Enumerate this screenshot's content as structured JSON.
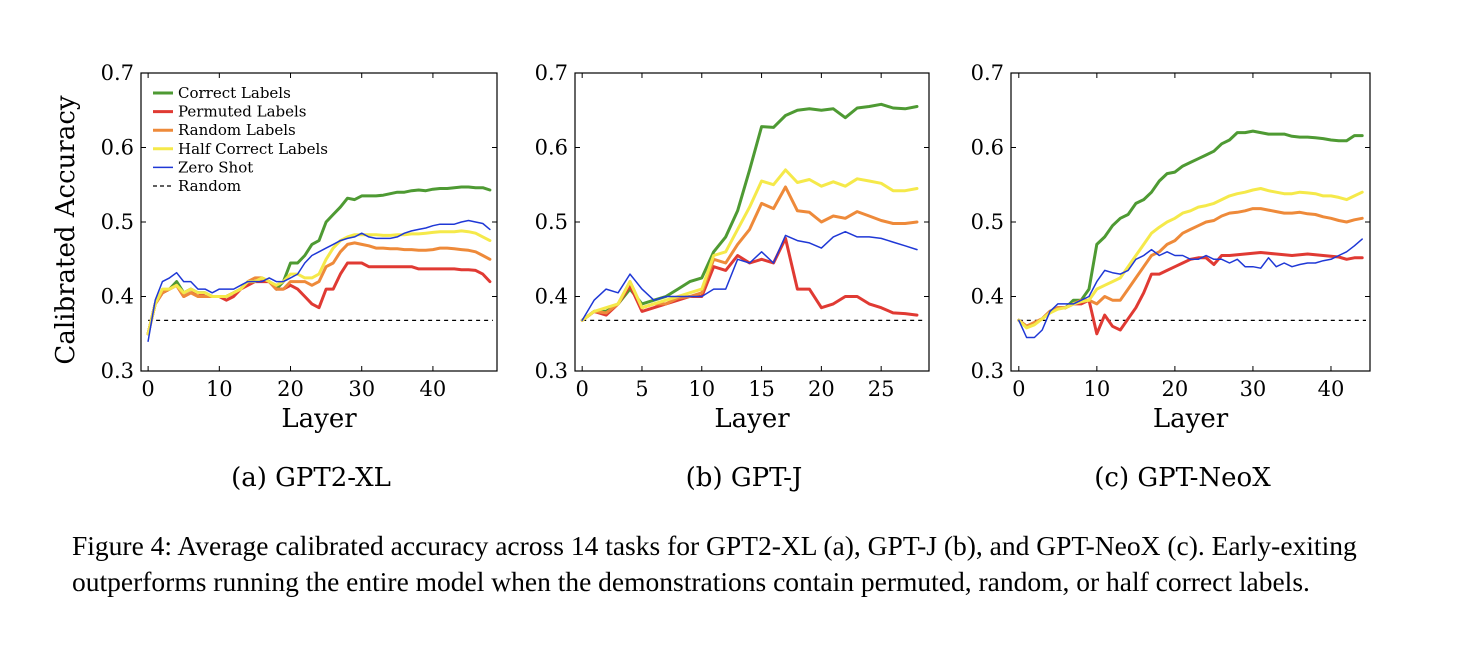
{
  "caption": "Figure 4: Average calibrated accuracy across 14 tasks for GPT2-XL (a), GPT-J (b), and GPT-NeoX (c). Early-exiting outperforms running the entire model when the demonstrations contain permuted, random, or half correct labels.",
  "legend": [
    {
      "label": "Correct Labels",
      "color": "#4e9a33",
      "style": "solid"
    },
    {
      "label": "Permuted Labels",
      "color": "#e03a33",
      "style": "solid"
    },
    {
      "label": "Random Labels",
      "color": "#ee8a3a",
      "style": "solid"
    },
    {
      "label": "Half Correct Labels",
      "color": "#f5e94a",
      "style": "solid"
    },
    {
      "label": "Zero Shot",
      "color": "#1f38d6",
      "style": "thin"
    },
    {
      "label": "Random",
      "color": "#000000",
      "style": "dashed"
    }
  ],
  "chart_data": [
    {
      "type": "line",
      "subcaption": "(a) GPT2-XL",
      "xlabel": "Layer",
      "ylabel": "Calibrated Accuracy",
      "xlim": [
        -1,
        49
      ],
      "ylim": [
        0.3,
        0.7
      ],
      "xticks": [
        0,
        10,
        20,
        30,
        40
      ],
      "yticks": [
        "0.3",
        "0.4",
        "0.5",
        "0.6",
        "0.7"
      ],
      "random_baseline": 0.368,
      "series": [
        {
          "name": "Correct Labels",
          "values": [
            0.35,
            0.39,
            0.405,
            0.41,
            0.42,
            0.405,
            0.41,
            0.405,
            0.405,
            0.4,
            0.4,
            0.4,
            0.405,
            0.41,
            0.42,
            0.42,
            0.425,
            0.42,
            0.41,
            0.42,
            0.445,
            0.445,
            0.455,
            0.47,
            0.475,
            0.5,
            0.51,
            0.52,
            0.532,
            0.53,
            0.535,
            0.535,
            0.535,
            0.536,
            0.538,
            0.54,
            0.54,
            0.542,
            0.543,
            0.542,
            0.544,
            0.545,
            0.545,
            0.546,
            0.547,
            0.547,
            0.546,
            0.546,
            0.543
          ]
        },
        {
          "name": "Permuted Labels",
          "values": [
            0.35,
            0.39,
            0.405,
            0.41,
            0.415,
            0.4,
            0.405,
            0.405,
            0.4,
            0.4,
            0.4,
            0.395,
            0.4,
            0.41,
            0.415,
            0.42,
            0.42,
            0.42,
            0.41,
            0.41,
            0.415,
            0.41,
            0.4,
            0.39,
            0.385,
            0.41,
            0.41,
            0.43,
            0.445,
            0.445,
            0.445,
            0.44,
            0.44,
            0.44,
            0.44,
            0.44,
            0.44,
            0.44,
            0.437,
            0.437,
            0.437,
            0.437,
            0.437,
            0.437,
            0.436,
            0.436,
            0.435,
            0.43,
            0.42
          ]
        },
        {
          "name": "Random Labels",
          "values": [
            0.35,
            0.39,
            0.405,
            0.41,
            0.415,
            0.4,
            0.405,
            0.4,
            0.4,
            0.4,
            0.4,
            0.4,
            0.405,
            0.41,
            0.42,
            0.425,
            0.425,
            0.42,
            0.41,
            0.41,
            0.42,
            0.42,
            0.42,
            0.415,
            0.42,
            0.44,
            0.445,
            0.46,
            0.47,
            0.472,
            0.47,
            0.468,
            0.465,
            0.465,
            0.464,
            0.464,
            0.463,
            0.463,
            0.462,
            0.462,
            0.463,
            0.465,
            0.465,
            0.464,
            0.463,
            0.462,
            0.46,
            0.455,
            0.45
          ]
        },
        {
          "name": "Half Correct Labels",
          "values": [
            0.35,
            0.39,
            0.41,
            0.41,
            0.415,
            0.405,
            0.41,
            0.405,
            0.405,
            0.4,
            0.4,
            0.4,
            0.405,
            0.41,
            0.42,
            0.42,
            0.425,
            0.42,
            0.415,
            0.42,
            0.43,
            0.43,
            0.425,
            0.425,
            0.43,
            0.45,
            0.465,
            0.475,
            0.48,
            0.483,
            0.483,
            0.483,
            0.483,
            0.482,
            0.482,
            0.483,
            0.483,
            0.484,
            0.484,
            0.485,
            0.486,
            0.487,
            0.487,
            0.487,
            0.488,
            0.487,
            0.485,
            0.48,
            0.475
          ]
        },
        {
          "name": "Zero Shot",
          "values": [
            0.34,
            0.395,
            0.42,
            0.425,
            0.432,
            0.42,
            0.42,
            0.41,
            0.41,
            0.405,
            0.41,
            0.41,
            0.41,
            0.415,
            0.42,
            0.42,
            0.42,
            0.425,
            0.42,
            0.42,
            0.425,
            0.43,
            0.445,
            0.455,
            0.46,
            0.465,
            0.47,
            0.475,
            0.478,
            0.48,
            0.485,
            0.48,
            0.478,
            0.478,
            0.478,
            0.48,
            0.485,
            0.488,
            0.49,
            0.492,
            0.495,
            0.497,
            0.497,
            0.497,
            0.5,
            0.502,
            0.5,
            0.498,
            0.49
          ]
        }
      ]
    },
    {
      "type": "line",
      "subcaption": "(b) GPT-J",
      "xlabel": "Layer",
      "ylabel": "",
      "xlim": [
        -0.6,
        29
      ],
      "ylim": [
        0.3,
        0.7
      ],
      "xticks": [
        0,
        5,
        10,
        15,
        20,
        25
      ],
      "yticks": [
        "0.3",
        "0.4",
        "0.5",
        "0.6",
        "0.7"
      ],
      "random_baseline": 0.368,
      "series": [
        {
          "name": "Correct Labels",
          "values": [
            0.368,
            0.38,
            0.38,
            0.39,
            0.41,
            0.39,
            0.395,
            0.4,
            0.41,
            0.42,
            0.425,
            0.46,
            0.48,
            0.515,
            0.57,
            0.628,
            0.627,
            0.643,
            0.65,
            0.652,
            0.65,
            0.652,
            0.64,
            0.653,
            0.655,
            0.658,
            0.653,
            0.652,
            0.655
          ]
        },
        {
          "name": "Permuted Labels",
          "values": [
            0.368,
            0.38,
            0.375,
            0.39,
            0.415,
            0.38,
            0.385,
            0.39,
            0.395,
            0.4,
            0.4,
            0.44,
            0.435,
            0.455,
            0.445,
            0.45,
            0.445,
            0.478,
            0.41,
            0.41,
            0.385,
            0.39,
            0.4,
            0.4,
            0.39,
            0.385,
            0.378,
            0.377,
            0.375
          ]
        },
        {
          "name": "Random Labels",
          "values": [
            0.368,
            0.38,
            0.378,
            0.39,
            0.42,
            0.385,
            0.39,
            0.39,
            0.398,
            0.4,
            0.405,
            0.45,
            0.445,
            0.47,
            0.49,
            0.525,
            0.518,
            0.547,
            0.515,
            0.513,
            0.5,
            0.508,
            0.505,
            0.514,
            0.508,
            0.502,
            0.498,
            0.498,
            0.5
          ]
        },
        {
          "name": "Half Correct Labels",
          "values": [
            0.368,
            0.38,
            0.385,
            0.39,
            0.42,
            0.385,
            0.39,
            0.395,
            0.4,
            0.405,
            0.41,
            0.455,
            0.46,
            0.49,
            0.52,
            0.555,
            0.55,
            0.57,
            0.553,
            0.557,
            0.548,
            0.554,
            0.548,
            0.558,
            0.555,
            0.552,
            0.542,
            0.542,
            0.545
          ]
        },
        {
          "name": "Zero Shot",
          "values": [
            0.368,
            0.395,
            0.41,
            0.405,
            0.43,
            0.41,
            0.395,
            0.4,
            0.4,
            0.4,
            0.4,
            0.41,
            0.41,
            0.45,
            0.445,
            0.46,
            0.445,
            0.482,
            0.475,
            0.472,
            0.465,
            0.48,
            0.487,
            0.48,
            0.48,
            0.478,
            0.473,
            0.468,
            0.463
          ]
        }
      ]
    },
    {
      "type": "line",
      "subcaption": "(c) GPT-NeoX",
      "xlabel": "Layer",
      "ylabel": "",
      "xlim": [
        -1,
        45
      ],
      "ylim": [
        0.3,
        0.7
      ],
      "xticks": [
        0,
        10,
        20,
        30,
        40
      ],
      "yticks": [
        "0.3",
        "0.4",
        "0.5",
        "0.6",
        "0.7"
      ],
      "random_baseline": 0.368,
      "series": [
        {
          "name": "Correct Labels",
          "values": [
            0.368,
            0.36,
            0.365,
            0.37,
            0.38,
            0.385,
            0.385,
            0.395,
            0.395,
            0.41,
            0.47,
            0.48,
            0.495,
            0.505,
            0.51,
            0.525,
            0.53,
            0.54,
            0.555,
            0.565,
            0.567,
            0.575,
            0.58,
            0.585,
            0.59,
            0.595,
            0.605,
            0.61,
            0.62,
            0.62,
            0.622,
            0.62,
            0.618,
            0.618,
            0.618,
            0.615,
            0.614,
            0.614,
            0.613,
            0.612,
            0.61,
            0.609,
            0.609,
            0.616,
            0.616
          ]
        },
        {
          "name": "Permuted Labels",
          "values": [
            0.368,
            0.36,
            0.365,
            0.37,
            0.38,
            0.385,
            0.385,
            0.39,
            0.39,
            0.395,
            0.35,
            0.375,
            0.36,
            0.355,
            0.37,
            0.385,
            0.405,
            0.43,
            0.43,
            0.435,
            0.44,
            0.445,
            0.45,
            0.452,
            0.452,
            0.443,
            0.455,
            0.455,
            0.456,
            0.457,
            0.458,
            0.459,
            0.458,
            0.457,
            0.456,
            0.455,
            0.456,
            0.457,
            0.456,
            0.455,
            0.454,
            0.453,
            0.45,
            0.452,
            0.452
          ]
        },
        {
          "name": "Random Labels",
          "values": [
            0.368,
            0.36,
            0.365,
            0.37,
            0.38,
            0.385,
            0.385,
            0.39,
            0.395,
            0.395,
            0.39,
            0.4,
            0.395,
            0.395,
            0.41,
            0.425,
            0.44,
            0.455,
            0.46,
            0.47,
            0.475,
            0.485,
            0.49,
            0.495,
            0.5,
            0.502,
            0.508,
            0.512,
            0.513,
            0.515,
            0.518,
            0.518,
            0.516,
            0.514,
            0.512,
            0.512,
            0.513,
            0.511,
            0.51,
            0.507,
            0.505,
            0.502,
            0.5,
            0.503,
            0.505
          ]
        },
        {
          "name": "Half Correct Labels",
          "values": [
            0.368,
            0.358,
            0.362,
            0.37,
            0.378,
            0.383,
            0.385,
            0.39,
            0.393,
            0.395,
            0.41,
            0.415,
            0.42,
            0.425,
            0.44,
            0.455,
            0.47,
            0.485,
            0.493,
            0.5,
            0.505,
            0.512,
            0.515,
            0.52,
            0.522,
            0.525,
            0.53,
            0.535,
            0.538,
            0.54,
            0.543,
            0.545,
            0.542,
            0.54,
            0.538,
            0.538,
            0.54,
            0.539,
            0.538,
            0.535,
            0.535,
            0.533,
            0.53,
            0.535,
            0.54
          ]
        },
        {
          "name": "Zero Shot",
          "values": [
            0.368,
            0.345,
            0.345,
            0.355,
            0.38,
            0.39,
            0.39,
            0.39,
            0.395,
            0.4,
            0.42,
            0.435,
            0.432,
            0.43,
            0.435,
            0.45,
            0.455,
            0.463,
            0.455,
            0.46,
            0.455,
            0.455,
            0.45,
            0.45,
            0.455,
            0.45,
            0.45,
            0.445,
            0.45,
            0.44,
            0.44,
            0.438,
            0.452,
            0.44,
            0.445,
            0.44,
            0.443,
            0.445,
            0.445,
            0.448,
            0.45,
            0.455,
            0.46,
            0.468,
            0.477
          ]
        }
      ]
    }
  ]
}
